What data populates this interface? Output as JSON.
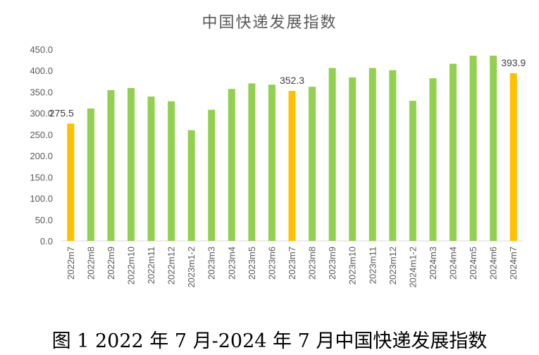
{
  "caption": "图 1 2022 年 7 月-2024 年 7 月中国快递发展指数",
  "chart_data": {
    "type": "bar",
    "title": "中国快递发展指数",
    "xlabel": "",
    "ylabel": "",
    "ylim": [
      0,
      450
    ],
    "yticks": [
      "0.0",
      "50.0",
      "100.0",
      "150.0",
      "200.0",
      "250.0",
      "300.0",
      "350.0",
      "400.0",
      "450.0"
    ],
    "grid": false,
    "legend": "none",
    "colors": {
      "normal": "#92D050",
      "highlight": "#FFC000",
      "axis": "#D9D9D9"
    },
    "categories": [
      "2022m7",
      "2022m8",
      "2022m9",
      "2022m10",
      "2022m11",
      "2022m12",
      "2023m1-2",
      "2023m3",
      "2023m4",
      "2023m5",
      "2023m6",
      "2023m7",
      "2023m8",
      "2023m9",
      "2023m10",
      "2023m11",
      "2023m12",
      "2024m1-2",
      "2024m3",
      "2024m4",
      "2024m5",
      "2024m6",
      "2024m7"
    ],
    "values": [
      275.5,
      311,
      354,
      359,
      339,
      328,
      260,
      308,
      357,
      370,
      367,
      352.3,
      362,
      406,
      384,
      406,
      401,
      329,
      382,
      416,
      435,
      435,
      393.9
    ],
    "highlight": [
      true,
      false,
      false,
      false,
      false,
      false,
      false,
      false,
      false,
      false,
      false,
      true,
      false,
      false,
      false,
      false,
      false,
      false,
      false,
      false,
      false,
      false,
      true
    ],
    "data_labels": [
      "275.5",
      "",
      "",
      "",
      "",
      "",
      "",
      "",
      "",
      "",
      "",
      "352.3",
      "",
      "",
      "",
      "",
      "",
      "",
      "",
      "",
      "",
      "",
      "393.9"
    ]
  }
}
